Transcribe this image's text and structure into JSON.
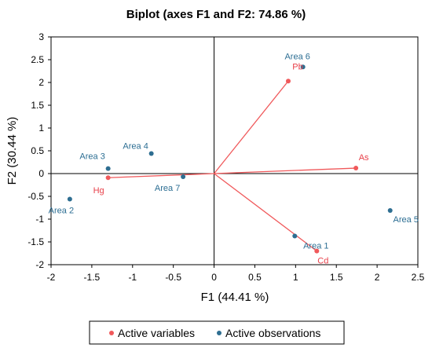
{
  "chart_data": {
    "type": "scatter",
    "title": "Biplot (axes F1 and F2: 74.86 %)",
    "xlabel": "F1 (44.41 %)",
    "ylabel": "F2 (30.44 %)",
    "xlim": [
      -2,
      2.5
    ],
    "ylim": [
      -2,
      3
    ],
    "xticks": [
      "-2",
      "-1.5",
      "-1",
      "-0.5",
      "0",
      "0.5",
      "1",
      "1.5",
      "2",
      "2.5"
    ],
    "yticks": [
      "-2",
      "-1.5",
      "-1",
      "-0.5",
      "0",
      "0.5",
      "1",
      "1.5",
      "2",
      "2.5",
      "3"
    ],
    "grid": false,
    "legend_position": "bottom",
    "legend": [
      "Active variables",
      "Active observations"
    ],
    "colors": {
      "variables": "#F0595B",
      "observations": "#2E6E91",
      "variable_label": "#E8404A",
      "observation_label": "#2C6E93"
    },
    "variables": [
      {
        "name": "Pb",
        "x": 0.91,
        "y": 2.03
      },
      {
        "name": "As",
        "x": 1.74,
        "y": 0.12
      },
      {
        "name": "Hg",
        "x": -1.3,
        "y": -0.09
      },
      {
        "name": "Cd",
        "x": 1.26,
        "y": -1.7
      }
    ],
    "observations": [
      {
        "name": "Area 6",
        "x": 1.09,
        "y": 2.34
      },
      {
        "name": "Area 4",
        "x": -0.77,
        "y": 0.44
      },
      {
        "name": "Area 3",
        "x": -1.3,
        "y": 0.11
      },
      {
        "name": "Area 7",
        "x": -0.38,
        "y": -0.07
      },
      {
        "name": "Area 2",
        "x": -1.77,
        "y": -0.56
      },
      {
        "name": "Area 5",
        "x": 2.16,
        "y": -0.81
      },
      {
        "name": "Area 1",
        "x": 0.99,
        "y": -1.37
      }
    ]
  }
}
